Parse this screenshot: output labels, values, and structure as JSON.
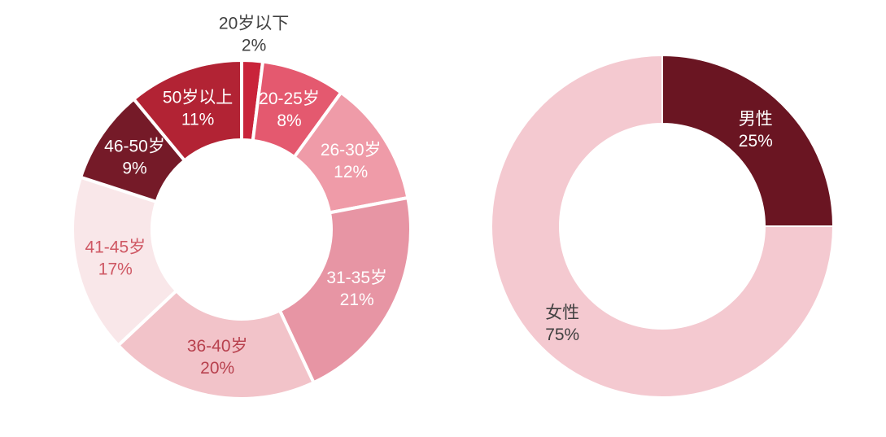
{
  "figure": {
    "background_color": "#ffffff",
    "outside_label_color": "#404040"
  },
  "chart_data": [
    {
      "type": "pie",
      "subtype": "donut",
      "id": "age-distribution",
      "start_angle_deg": 0,
      "direction": "clockwise",
      "legend": "none",
      "slices": [
        {
          "id": "under-20",
          "label": "20岁以下",
          "value": 2,
          "pct_label": "2%",
          "color": "#c9243a",
          "label_color": "#404040",
          "label_placement": "outside"
        },
        {
          "id": "age-20-25",
          "label": "20-25岁",
          "value": 8,
          "pct_label": "8%",
          "color": "#e4596f",
          "label_color": "#ffffff",
          "label_placement": "inside"
        },
        {
          "id": "age-26-30",
          "label": "26-30岁",
          "value": 12,
          "pct_label": "12%",
          "color": "#ef9ba8",
          "label_color": "#ffffff",
          "label_placement": "inside"
        },
        {
          "id": "age-31-35",
          "label": "31-35岁",
          "value": 21,
          "pct_label": "21%",
          "color": "#e795a4",
          "label_color": "#ffffff",
          "label_placement": "inside"
        },
        {
          "id": "age-36-40",
          "label": "36-40岁",
          "value": 20,
          "pct_label": "20%",
          "color": "#f2c3c9",
          "label_color": "#b8414e",
          "label_placement": "inside"
        },
        {
          "id": "age-41-45",
          "label": "41-45岁",
          "value": 17,
          "pct_label": "17%",
          "color": "#f9e7e9",
          "label_color": "#cf5864",
          "label_placement": "inside"
        },
        {
          "id": "age-46-50",
          "label": "46-50岁",
          "value": 9,
          "pct_label": "9%",
          "color": "#751a28",
          "label_color": "#ffffff",
          "label_placement": "inside"
        },
        {
          "id": "over-50",
          "label": "50岁以上",
          "value": 11,
          "pct_label": "11%",
          "color": "#b22334",
          "label_color": "#ffffff",
          "label_placement": "inside"
        }
      ]
    },
    {
      "type": "pie",
      "subtype": "donut",
      "id": "gender-distribution",
      "start_angle_deg": 0,
      "direction": "clockwise",
      "legend": "none",
      "slices": [
        {
          "id": "male",
          "label": "男性",
          "value": 25,
          "pct_label": "25%",
          "color": "#6a1522",
          "label_color": "#ffffff",
          "label_placement": "inside"
        },
        {
          "id": "female",
          "label": "女性",
          "value": 75,
          "pct_label": "75%",
          "color": "#f4c9d0",
          "label_color": "#404040",
          "label_placement": "inside"
        }
      ]
    }
  ]
}
